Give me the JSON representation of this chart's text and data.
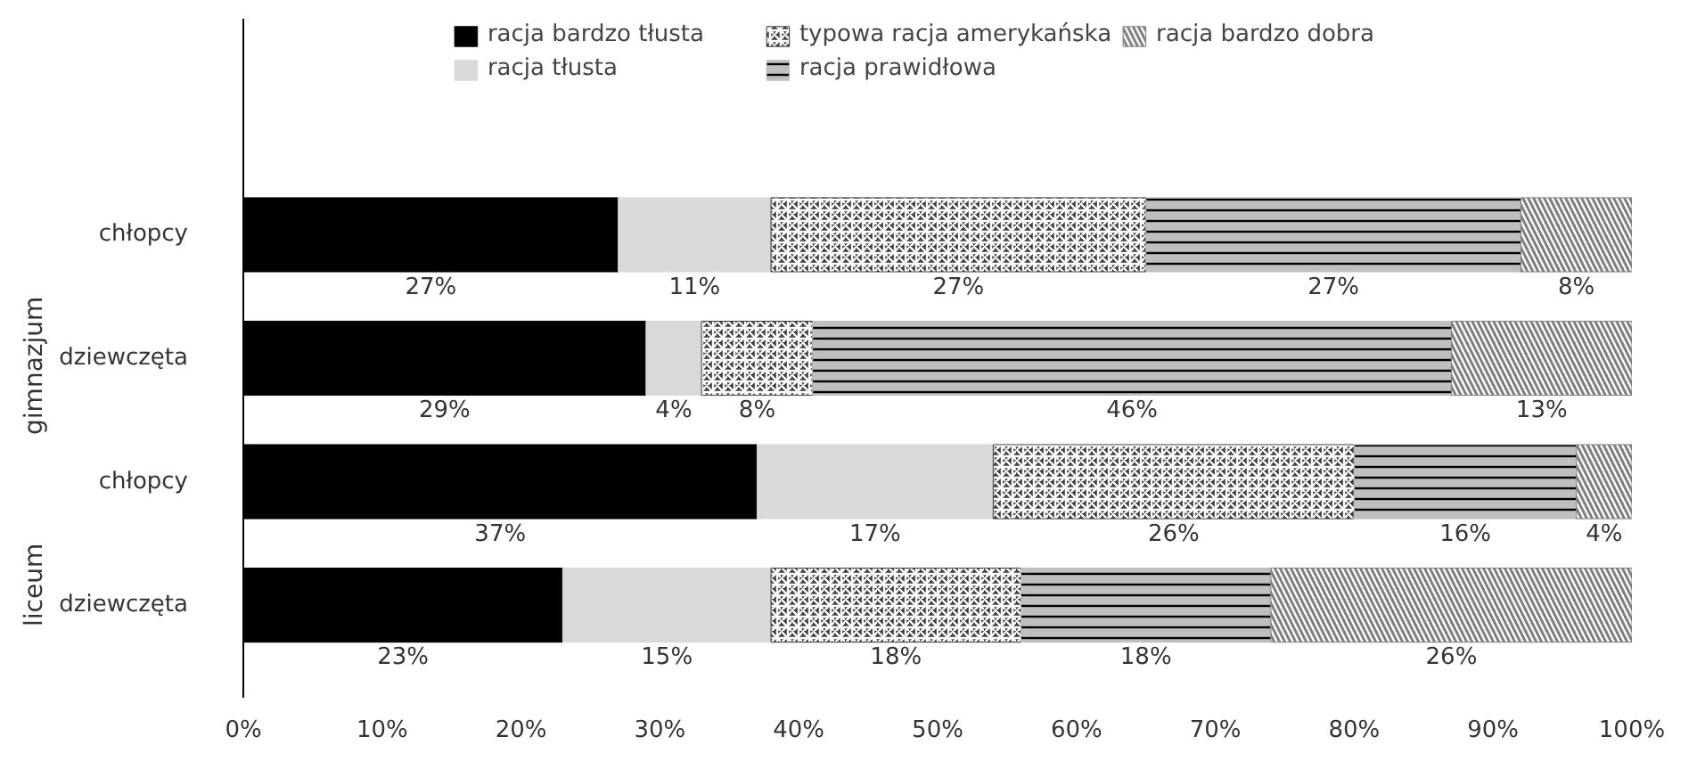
{
  "chart_data": {
    "type": "bar",
    "orientation": "horizontal",
    "stacked": true,
    "categories": [
      "chłopcy",
      "dziewczęta",
      "chłopcy",
      "dziewczęta"
    ],
    "annotations": [
      "gimnazjum",
      "liceum"
    ],
    "series": [
      {
        "name": "racja bardzo tłusta",
        "color": "#000000",
        "values": [
          27,
          29,
          37,
          23
        ],
        "value_labels": [
          "27%",
          "29%",
          "37%",
          "23%"
        ]
      },
      {
        "name": "racja tłusta",
        "color": "#d9d9d9",
        "values": [
          11,
          4,
          17,
          15
        ],
        "value_labels": [
          "11%",
          "4%",
          "17%",
          "15%"
        ]
      },
      {
        "name": "typowa racja amerykańska",
        "color": "#404040",
        "values": [
          27,
          8,
          26,
          18
        ],
        "value_labels": [
          "27%",
          "8%",
          "26%",
          "18%"
        ]
      },
      {
        "name": "racja prawidłowa",
        "color": "#bfbfbf",
        "values": [
          27,
          46,
          16,
          18
        ],
        "value_labels": [
          "27%",
          "46%",
          "16%",
          "18%"
        ]
      },
      {
        "name": "racja bardzo dobra",
        "color": "#7f7f7f",
        "values": [
          8,
          13,
          4,
          26
        ],
        "value_labels": [
          "8%",
          "13%",
          "4%",
          "26%"
        ]
      }
    ],
    "xlim": [
      0,
      100
    ],
    "xticks": [
      {
        "value": 0,
        "label": "0%"
      },
      {
        "value": 10,
        "label": "10%"
      },
      {
        "value": 20,
        "label": "20%"
      },
      {
        "value": 30,
        "label": "30%"
      },
      {
        "value": 40,
        "label": "40%"
      },
      {
        "value": 50,
        "label": "50%"
      },
      {
        "value": 60,
        "label": "60%"
      },
      {
        "value": 70,
        "label": "70%"
      },
      {
        "value": 80,
        "label": "80%"
      },
      {
        "value": 90,
        "label": "90%"
      },
      {
        "value": 100,
        "label": "100%"
      }
    ],
    "grid": false,
    "legend": "top"
  }
}
